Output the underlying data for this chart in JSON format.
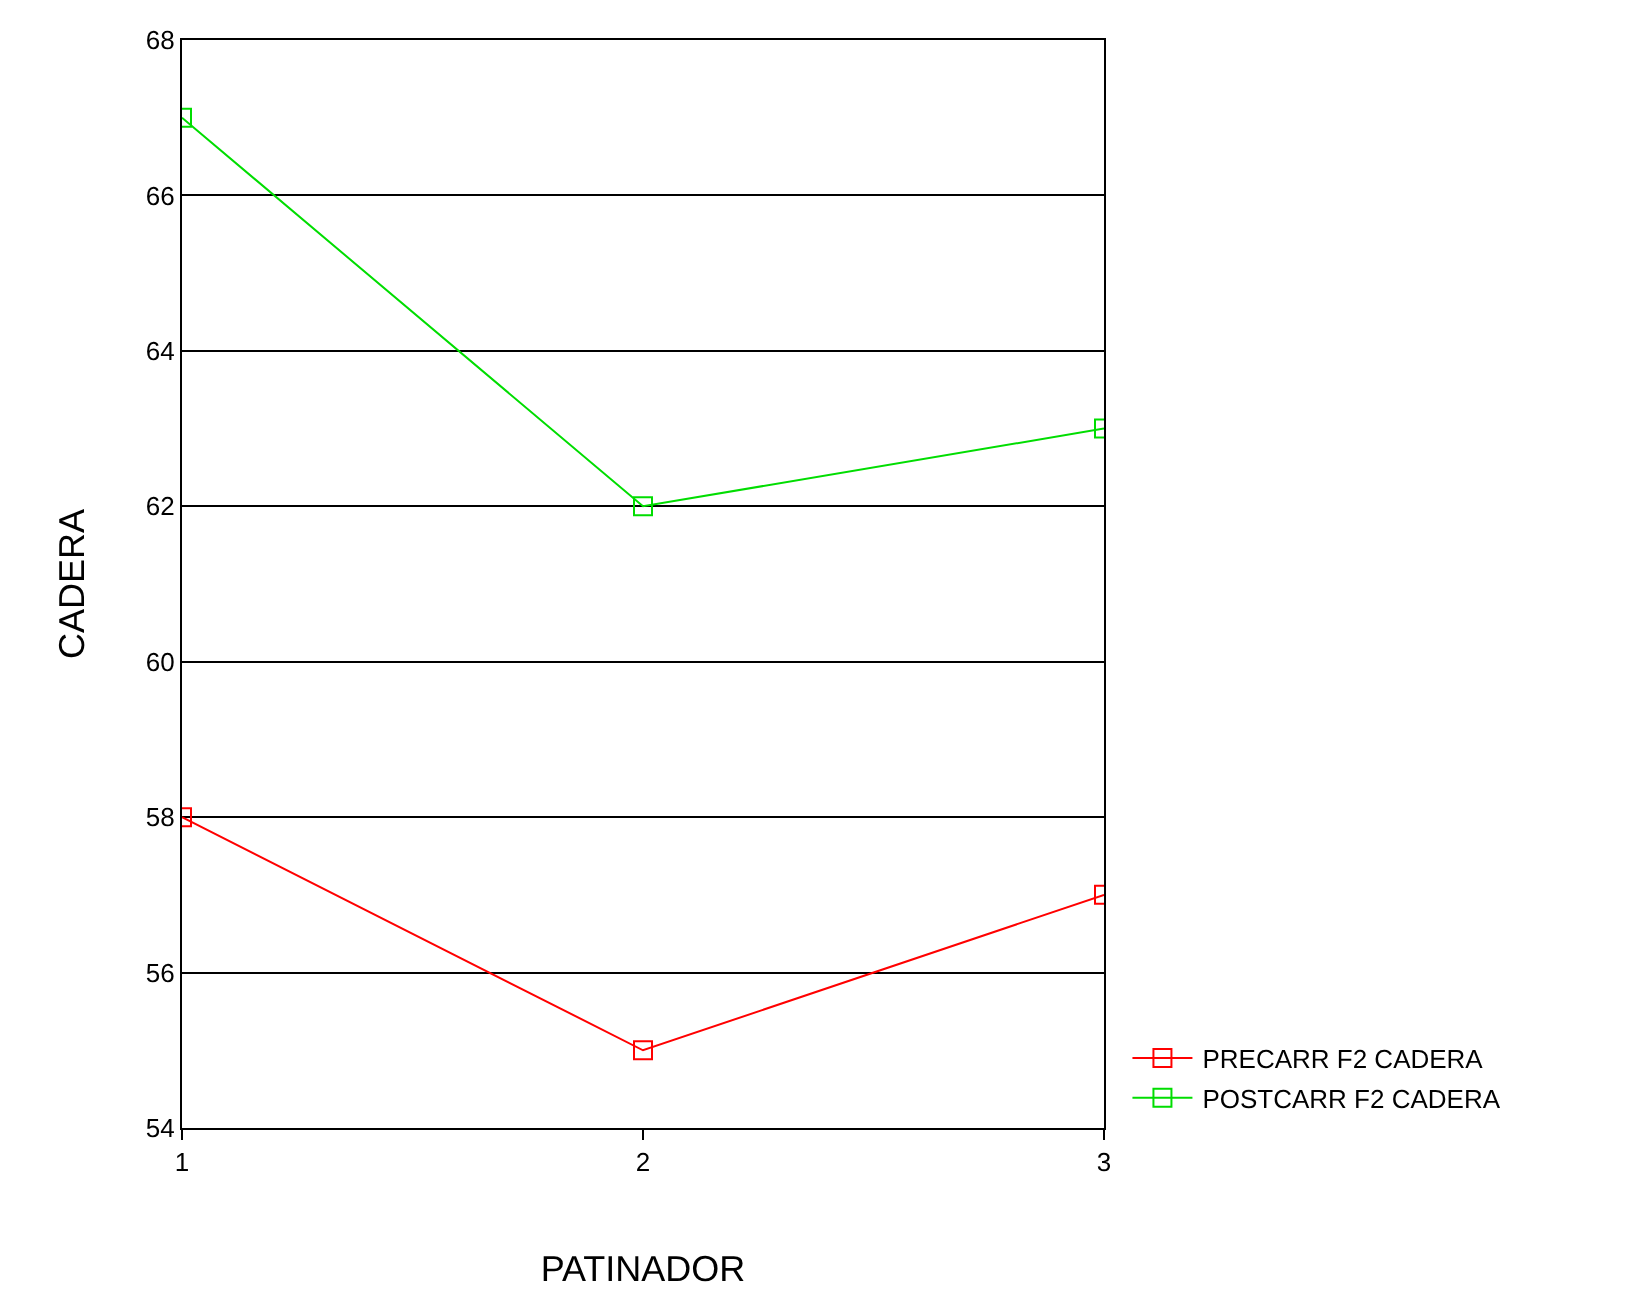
{
  "chart_data": {
    "type": "line",
    "xlabel": "PATINADOR",
    "ylabel": "CADERA",
    "x": [
      1,
      2,
      3
    ],
    "series": [
      {
        "name": "PRECARR F2 CADERA",
        "color": "#ff0000",
        "values": [
          58,
          55,
          57
        ]
      },
      {
        "name": "POSTCARR F2 CADERA",
        "color": "#00dd00",
        "values": [
          67,
          62,
          63
        ]
      }
    ],
    "xlim": [
      1,
      3
    ],
    "xticks": [
      1,
      2,
      3
    ],
    "ylim": [
      54,
      68
    ],
    "yticks": [
      54,
      56,
      58,
      60,
      62,
      64,
      66,
      68
    ],
    "grid": "y",
    "legend": "bottom right",
    "marker": "square",
    "line_style": "solid"
  }
}
